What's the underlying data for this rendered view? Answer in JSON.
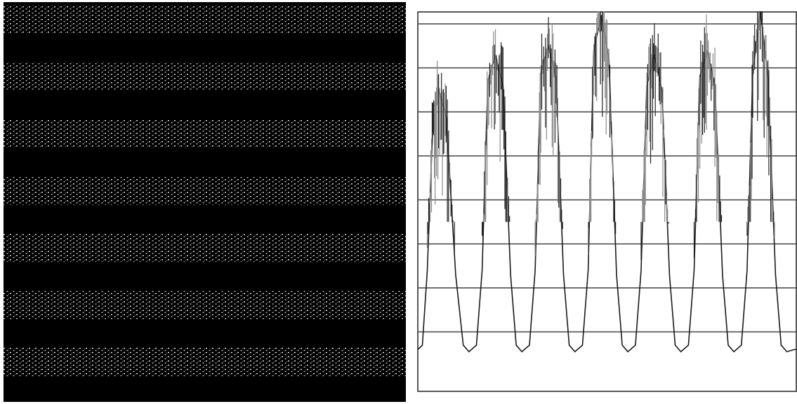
{
  "colors": {
    "background": "#ffffff",
    "stripe_dark": "#000000",
    "stripe_light": "#d9d9d9",
    "gridline": "#444444",
    "frame": "#222222",
    "trace": "#1a1a1a"
  },
  "left_image": {
    "kind": "micrograph",
    "bright_band_count": 7
  },
  "chart_data": {
    "type": "line",
    "title": "",
    "xlabel": "",
    "ylabel": "",
    "xlim": [
      0,
      1
    ],
    "ylim": [
      0,
      8
    ],
    "grid": "horizontal",
    "y_gridlines": [
      1,
      2,
      3,
      4,
      5,
      6,
      7,
      8
    ],
    "legend": "none",
    "peak_count": 7,
    "series": [
      {
        "x": [
          0.0,
          0.012,
          0.025,
          0.04,
          0.055,
          0.075,
          0.1,
          0.12,
          0.135,
          0.155,
          0.17,
          0.185,
          0.205,
          0.225,
          0.245,
          0.26,
          0.275,
          0.295,
          0.31,
          0.325,
          0.345,
          0.365,
          0.385,
          0.4,
          0.415,
          0.435,
          0.45,
          0.465,
          0.485,
          0.505,
          0.525,
          0.54,
          0.555,
          0.575,
          0.59,
          0.605,
          0.625,
          0.645,
          0.665,
          0.68,
          0.695,
          0.715,
          0.73,
          0.745,
          0.765,
          0.785,
          0.805,
          0.82,
          0.835,
          0.855,
          0.87,
          0.885,
          0.905,
          0.925,
          0.945,
          0.96,
          0.975,
          0.995,
          1.0
        ],
        "y": [
          0.6,
          0.7,
          2.4,
          5.8,
          6.5,
          5.9,
          2.3,
          0.7,
          0.55,
          0.7,
          2.4,
          6.7,
          7.3,
          6.6,
          2.3,
          0.7,
          0.55,
          0.7,
          2.4,
          6.9,
          7.5,
          6.8,
          2.3,
          0.7,
          0.55,
          0.7,
          2.4,
          7.4,
          8.2,
          7.2,
          2.3,
          0.7,
          0.55,
          0.7,
          2.4,
          6.6,
          7.3,
          6.5,
          2.3,
          0.7,
          0.55,
          0.7,
          2.4,
          6.8,
          7.4,
          6.6,
          2.3,
          0.7,
          0.55,
          0.7,
          2.4,
          6.9,
          8.3,
          6.8,
          2.3,
          0.7,
          0.55,
          0.6,
          0.6
        ]
      }
    ]
  }
}
